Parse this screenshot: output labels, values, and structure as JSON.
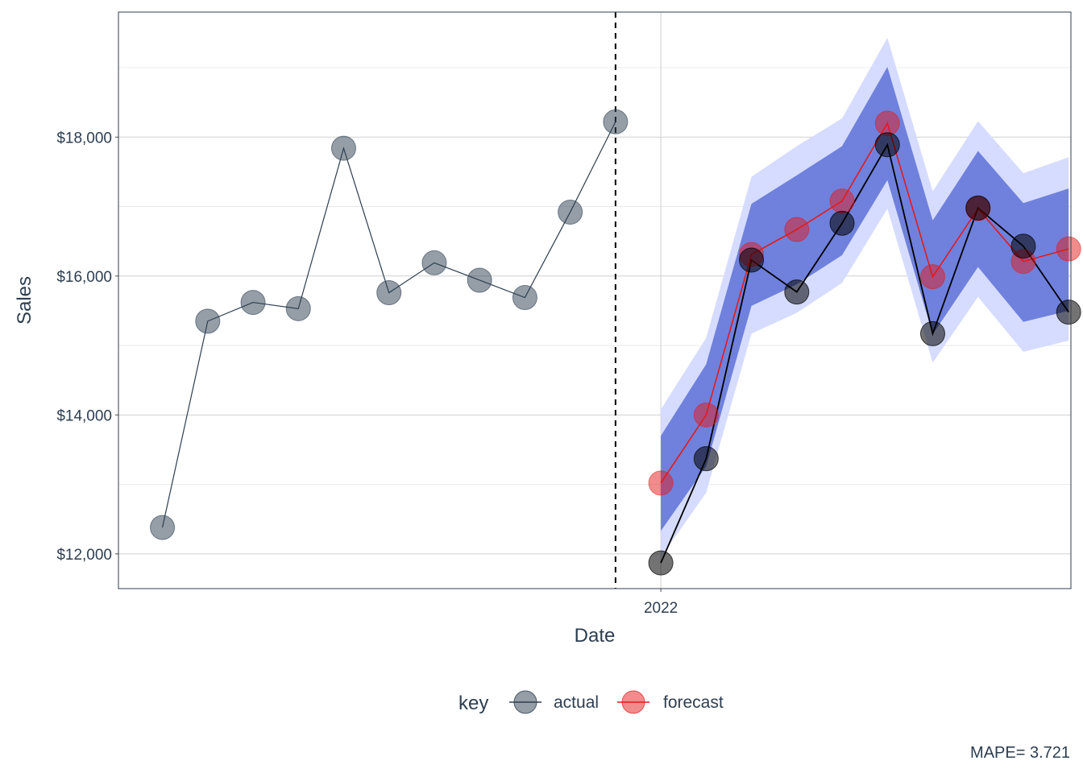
{
  "chart_data": {
    "type": "line",
    "xlabel": "Date",
    "ylabel": "Sales",
    "x_tick_labels": [
      {
        "label": "2022",
        "month_index": 11
      }
    ],
    "y_ticks": [
      12000,
      14000,
      16000,
      18000
    ],
    "y_tick_labels": [
      "$12,000",
      "$14,000",
      "$16,000",
      "$18,000"
    ],
    "ylim": [
      11500,
      19800
    ],
    "xlim": [
      -0.97,
      20.05
    ],
    "forecast_start_index": 10,
    "grid": true,
    "legend": {
      "title": "key",
      "position": "bottom",
      "entries": [
        {
          "label": "actual",
          "color": "#2c3e50"
        },
        {
          "label": "forecast",
          "color": "#e31a1c"
        }
      ]
    },
    "caption": "MAPE= 3.721",
    "series": [
      {
        "name": "actual",
        "segment": "training",
        "x": [
          0,
          1,
          2,
          3,
          4,
          5,
          6,
          7,
          8,
          9,
          10
        ],
        "values": [
          12380,
          15350,
          15620,
          15530,
          17840,
          15760,
          16190,
          15940,
          15690,
          16920,
          18220
        ],
        "color": "#2c3e50"
      },
      {
        "name": "actual",
        "segment": "test",
        "x": [
          11,
          12,
          13,
          14,
          15,
          16,
          17,
          18,
          19,
          20
        ],
        "values": [
          11870,
          13370,
          16230,
          15770,
          16760,
          17890,
          15170,
          16980,
          16430,
          15480
        ],
        "color": "#000000"
      },
      {
        "name": "forecast",
        "x": [
          11,
          12,
          13,
          14,
          15,
          16,
          17,
          18,
          19,
          20
        ],
        "values": [
          13020,
          14000,
          16310,
          16670,
          17080,
          18200,
          15990,
          16970,
          16210,
          16390
        ],
        "color": "#e31a1c"
      }
    ],
    "confidence_bands": [
      {
        "level": "95",
        "color": "#d6dcff",
        "x": [
          11,
          12,
          13,
          14,
          15,
          16,
          17,
          18,
          19,
          20
        ],
        "lo": [
          11950,
          12880,
          15170,
          15470,
          15900,
          16970,
          14750,
          15700,
          14910,
          15070
        ],
        "hi": [
          14080,
          15110,
          17430,
          17870,
          18270,
          19430,
          17220,
          18230,
          17480,
          17710
        ]
      },
      {
        "level": "80",
        "color": "#6f81dc",
        "x": [
          11,
          12,
          13,
          14,
          15,
          16,
          17,
          18,
          19,
          20
        ],
        "lo": [
          12330,
          13260,
          15570,
          15880,
          16300,
          17380,
          15160,
          16130,
          15340,
          15500
        ],
        "hi": [
          13700,
          14730,
          17040,
          17450,
          17870,
          19010,
          16800,
          17800,
          17050,
          17260
        ]
      }
    ]
  }
}
